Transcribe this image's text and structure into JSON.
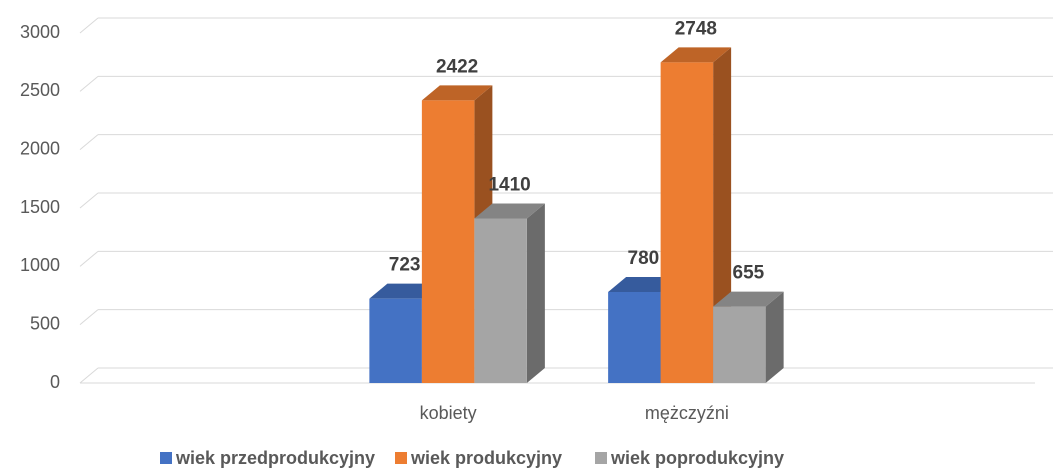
{
  "chart_data": {
    "type": "bar3d",
    "categories": [
      null,
      "kobiety",
      "mężczyźni",
      null
    ],
    "series": [
      {
        "name": "wiek przedprodukcyjny",
        "color": "#4472c4",
        "values": [
          null,
          723,
          780,
          null
        ]
      },
      {
        "name": "wiek produkcyjny",
        "color": "#ed7d31",
        "values": [
          null,
          2422,
          2748,
          null
        ]
      },
      {
        "name": "wiek poprodukcyjny",
        "color": "#a5a5a5",
        "values": [
          null,
          1410,
          655,
          null
        ]
      }
    ],
    "ylim": [
      0,
      3000
    ],
    "yticks": [
      0,
      500,
      1000,
      1500,
      2000,
      2500,
      3000
    ],
    "grid": true,
    "legend": "bottom"
  }
}
